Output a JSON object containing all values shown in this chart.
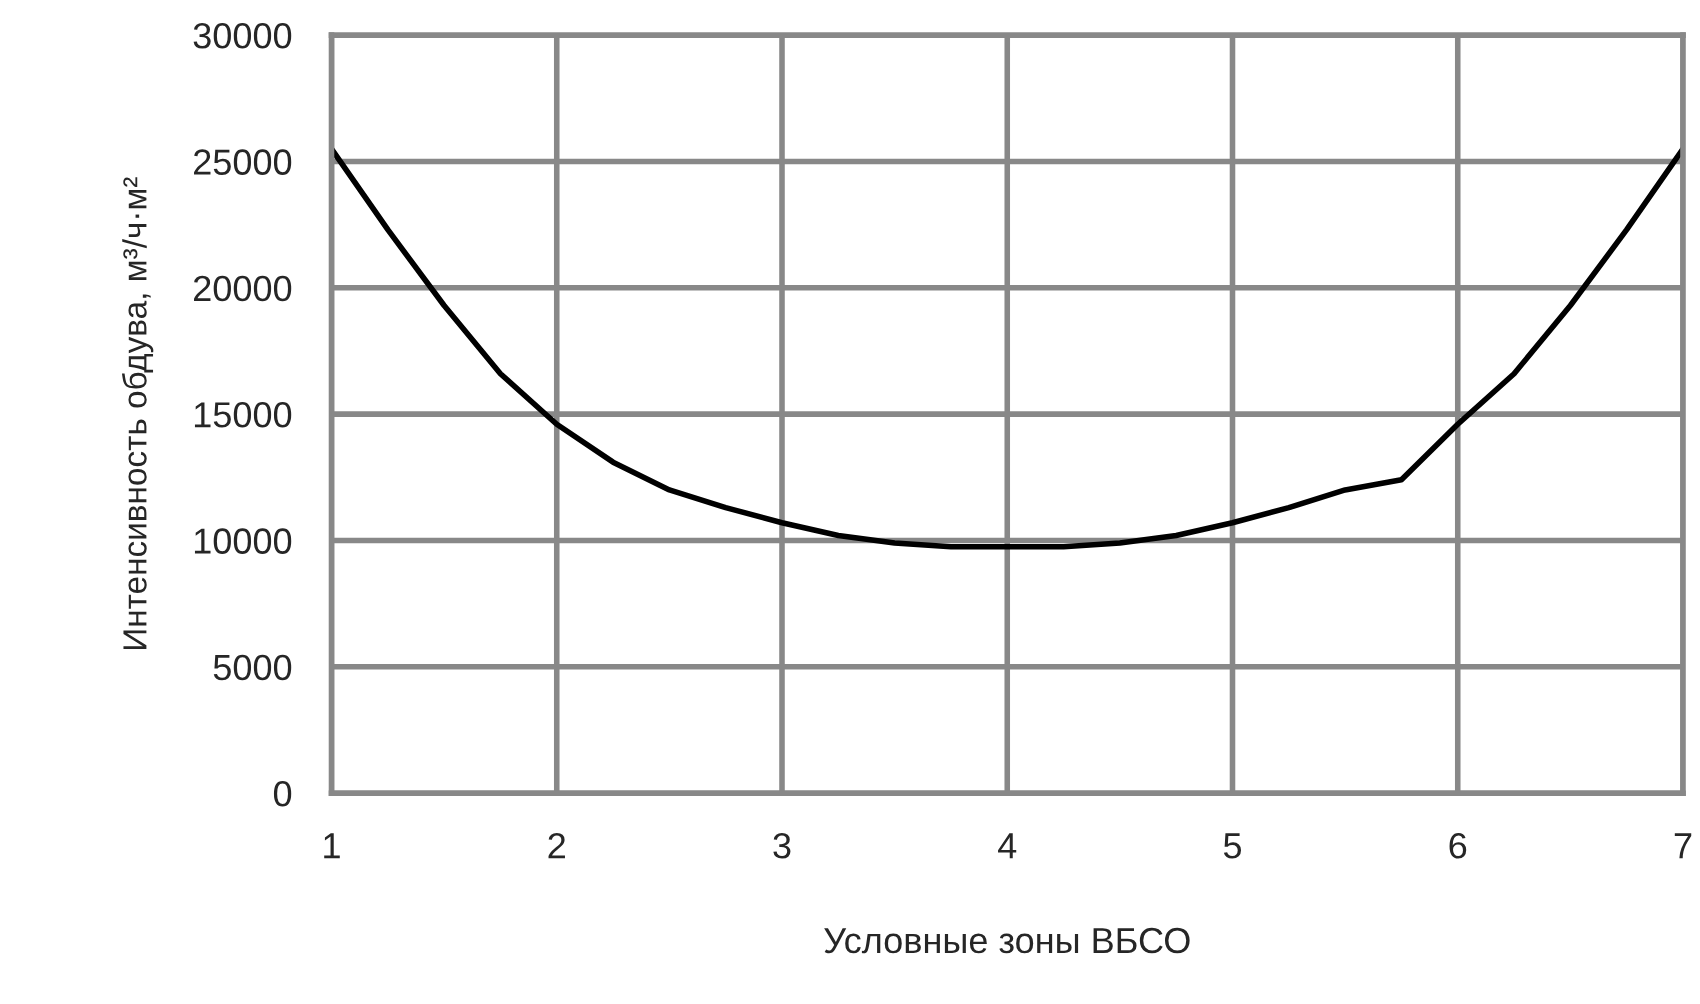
{
  "chart_data": {
    "type": "line",
    "xlabel": "Условные зоны ВБСО",
    "ylabel": "Интенсивность обдува, м³/ч·м²",
    "x": [
      1,
      1.25,
      1.5,
      1.75,
      2,
      2.25,
      2.5,
      2.75,
      3,
      3.25,
      3.5,
      3.75,
      4,
      4.25,
      4.5,
      4.75,
      5,
      5.25,
      5.5,
      5.75,
      6,
      6.25,
      6.5,
      6.75,
      7
    ],
    "series": [
      {
        "color": "#000000",
        "values": [
          25500,
          22300,
          19300,
          16600,
          14600,
          13100,
          12000,
          11300,
          10700,
          10200,
          9900,
          9750,
          9750,
          9750,
          9900,
          10200,
          10700,
          11300,
          12000,
          12400,
          14600,
          16600,
          19300,
          22300,
          25500
        ]
      }
    ],
    "xlim": [
      1,
      7
    ],
    "xticks": [
      1,
      2,
      3,
      4,
      5,
      6,
      7
    ],
    "ylim": [
      0,
      30000
    ],
    "yticks": [
      0,
      5000,
      10000,
      15000,
      20000,
      25000,
      30000
    ],
    "grid": true,
    "marker": "none",
    "line_style": "solid",
    "legend": false
  }
}
